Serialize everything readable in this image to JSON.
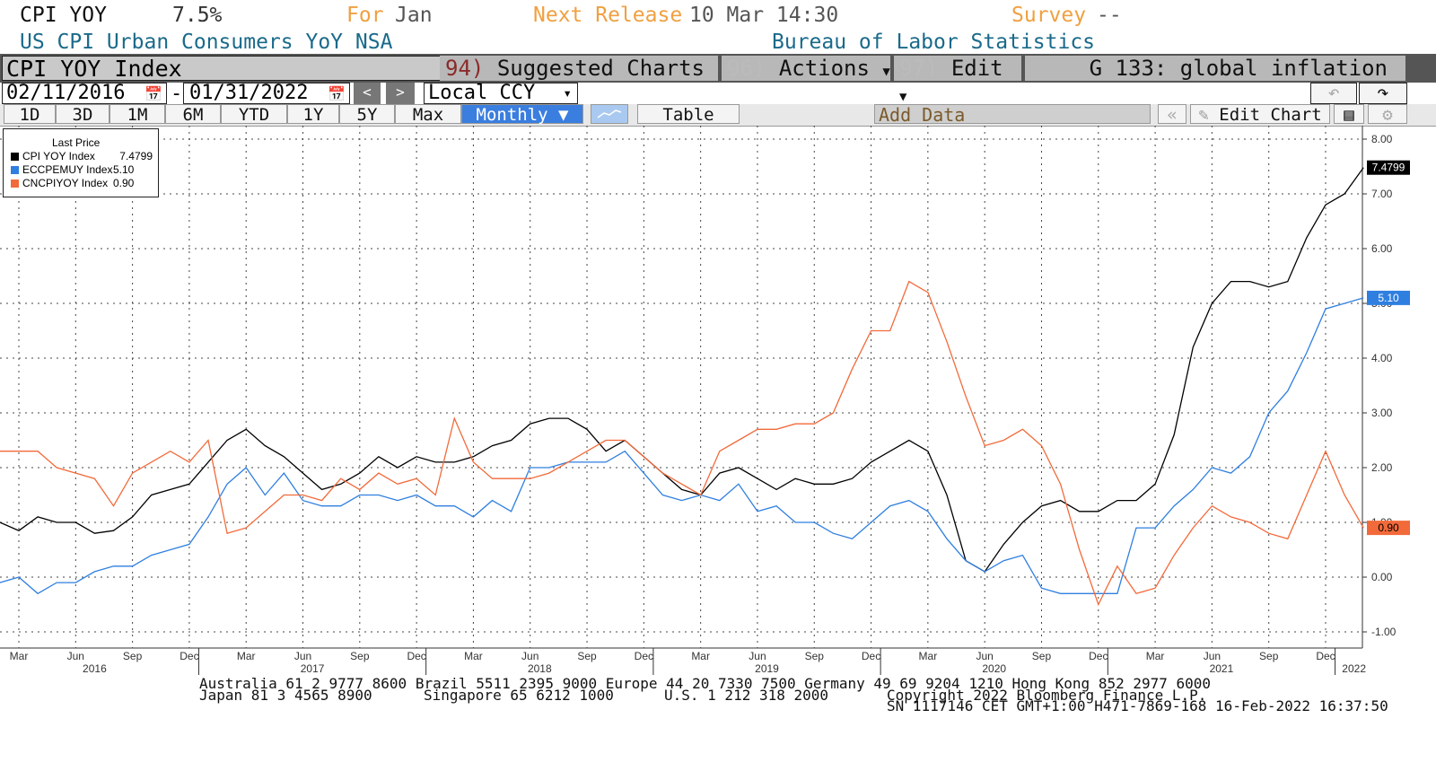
{
  "header": {
    "ticker": "CPI YOY",
    "value": "7.5%",
    "for_label": "For",
    "for_value": "Jan",
    "next_release_label": "Next Release",
    "next_release_value": "10 Mar 14:30",
    "survey_label": "Survey",
    "survey_value": "--",
    "description": "US CPI Urban Consumers YoY NSA",
    "source": "Bureau of Labor Statistics"
  },
  "menubar": {
    "security": "CPI YOY Index",
    "suggested_num": "94)",
    "suggested_label": "Suggested Charts",
    "actions_num": "96)",
    "actions_label": "Actions",
    "edit_num": "97)",
    "edit_label": "Edit",
    "page_title": "G 133: global inflation"
  },
  "controls": {
    "start_date": "02/11/2016",
    "dash": "-",
    "end_date": "01/31/2022",
    "prev": "<",
    "next": ">",
    "currency": "Local CCY",
    "currency_arrow": "▾",
    "undo_icon": "undo-icon",
    "redo_icon": "redo-icon"
  },
  "rangebar": {
    "ranges": [
      "1D",
      "3D",
      "1M",
      "6M",
      "YTD",
      "1Y",
      "5Y",
      "Max"
    ],
    "frequency": "Monthly ▼",
    "table": "Table",
    "add_data": "Add Data",
    "collapse": "«",
    "edit_chart": "Edit Chart"
  },
  "chart_data": {
    "type": "line",
    "legend_title": "Last Price",
    "legend_position": "top-left",
    "grid": true,
    "ylim": [
      -1.0,
      8.0
    ],
    "yticks": [
      "8.00",
      "7.00",
      "6.00",
      "5.00",
      "4.00",
      "3.00",
      "2.00",
      "1.00",
      "0.00",
      "-1.00"
    ],
    "x_start": "2016-02",
    "x_tick_labels": [
      "Mar",
      "Jun",
      "Sep",
      "Dec",
      "Mar",
      "Jun",
      "Sep",
      "Dec",
      "Mar",
      "Jun",
      "Sep",
      "Dec",
      "Mar",
      "Jun",
      "Sep",
      "Dec",
      "Mar",
      "Jun",
      "Sep",
      "Dec",
      "Mar",
      "Jun",
      "Sep",
      "Dec"
    ],
    "year_labels": [
      "2016",
      "2017",
      "2018",
      "2019",
      "2020",
      "2021",
      "2022"
    ],
    "series": [
      {
        "name": "CPI YOY Index",
        "last": "7.4799",
        "color": "#000000",
        "values": [
          1.0,
          0.85,
          1.1,
          1.0,
          1.0,
          0.8,
          0.85,
          1.1,
          1.5,
          1.6,
          1.7,
          2.1,
          2.5,
          2.7,
          2.4,
          2.2,
          1.9,
          1.6,
          1.7,
          1.9,
          2.2,
          2.0,
          2.2,
          2.1,
          2.1,
          2.2,
          2.4,
          2.5,
          2.8,
          2.9,
          2.9,
          2.7,
          2.3,
          2.5,
          2.2,
          1.9,
          1.6,
          1.5,
          1.9,
          2.0,
          1.8,
          1.6,
          1.8,
          1.7,
          1.7,
          1.8,
          2.1,
          2.3,
          2.5,
          2.3,
          1.5,
          0.3,
          0.1,
          0.6,
          1.0,
          1.3,
          1.4,
          1.2,
          1.2,
          1.4,
          1.4,
          1.7,
          2.6,
          4.2,
          5.0,
          5.4,
          5.4,
          5.3,
          5.4,
          6.2,
          6.8,
          7.0,
          7.48
        ]
      },
      {
        "name": "ECCPEMUY Index",
        "last": "5.10",
        "color": "#2f7fe0",
        "values": [
          -0.1,
          0.0,
          -0.3,
          -0.1,
          -0.1,
          0.1,
          0.2,
          0.2,
          0.4,
          0.5,
          0.6,
          1.1,
          1.7,
          2.0,
          1.5,
          1.9,
          1.4,
          1.3,
          1.3,
          1.5,
          1.5,
          1.4,
          1.5,
          1.3,
          1.3,
          1.1,
          1.4,
          1.2,
          2.0,
          2.0,
          2.1,
          2.1,
          2.1,
          2.3,
          1.9,
          1.5,
          1.4,
          1.5,
          1.4,
          1.7,
          1.2,
          1.3,
          1.0,
          1.0,
          0.8,
          0.7,
          1.0,
          1.3,
          1.4,
          1.2,
          0.7,
          0.3,
          0.1,
          0.3,
          0.4,
          -0.2,
          -0.3,
          -0.3,
          -0.3,
          -0.3,
          0.9,
          0.9,
          1.3,
          1.6,
          2.0,
          1.9,
          2.2,
          3.0,
          3.4,
          4.1,
          4.9,
          5.0,
          5.1
        ]
      },
      {
        "name": "CNCPIYOY Index",
        "last": "0.90",
        "color": "#f26a3a",
        "values": [
          2.3,
          2.3,
          2.3,
          2.0,
          1.9,
          1.8,
          1.3,
          1.9,
          2.1,
          2.3,
          2.1,
          2.5,
          0.8,
          0.9,
          1.2,
          1.5,
          1.5,
          1.4,
          1.8,
          1.6,
          1.9,
          1.7,
          1.8,
          1.5,
          2.9,
          2.1,
          1.8,
          1.8,
          1.8,
          1.9,
          2.1,
          2.3,
          2.5,
          2.5,
          2.2,
          1.9,
          1.7,
          1.5,
          2.3,
          2.5,
          2.7,
          2.7,
          2.8,
          2.8,
          3.0,
          3.8,
          4.5,
          4.5,
          5.4,
          5.2,
          4.3,
          3.3,
          2.4,
          2.5,
          2.7,
          2.4,
          1.7,
          0.5,
          -0.5,
          0.2,
          -0.3,
          -0.2,
          0.4,
          0.9,
          1.3,
          1.1,
          1.0,
          0.8,
          0.7,
          1.5,
          2.3,
          1.5,
          0.9
        ]
      }
    ],
    "value_tags": [
      "7.4799",
      "5.10",
      "0.90"
    ]
  },
  "footer": {
    "line1": "Australia 61 2 9777 8600 Brazil 5511 2395 9000 Europe 44 20 7330 7500 Germany 49 69 9204 1210 Hong Kong 852 2977 6000",
    "line2a": "Japan 81 3 4565 8900",
    "line2b": "Singapore 65 6212 1000",
    "line2c": "U.S. 1 212 318 2000",
    "line2d": "Copyright 2022 Bloomberg Finance L.P.",
    "line3": "SN 1117146 CET  GMT+1:00 H471-7869-168 16-Feb-2022 16:37:50"
  }
}
